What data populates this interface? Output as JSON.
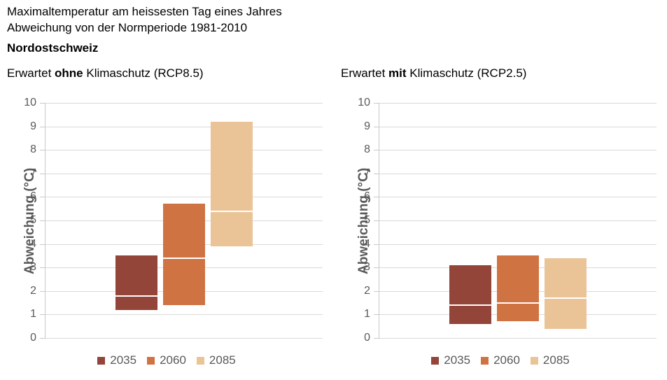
{
  "page": {
    "title_line1": "Maximaltemperatur am heissesten Tag eines Jahres",
    "title_line2": "Abweichung von der Normperiode 1981-2010",
    "region": "Nordostschweiz"
  },
  "colors": {
    "series_2035": "#924538",
    "series_2060": "#d07343",
    "series_2085": "#eac397",
    "median_line": "#ffffff",
    "gridline": "#d9d9d9",
    "axis_line": "#c9c9c9",
    "axis_text": "#595959",
    "title_text": "#000000"
  },
  "chart_data": [
    {
      "type": "bar",
      "subtype": "floating_range_bars",
      "scenario": "RCP8.5",
      "title_parts": {
        "prefix": "Erwartet ",
        "emphasis": "ohne",
        "suffix": " Klimaschutz (RCP8.5)"
      },
      "ylabel": "Abweichung (°C)",
      "ylim": [
        0,
        10
      ],
      "yticks": [
        0,
        1,
        2,
        3,
        4,
        5,
        6,
        7,
        8,
        9,
        10
      ],
      "grid": true,
      "legend_position": "bottom",
      "categories": [
        "2035",
        "2060",
        "2085"
      ],
      "series": [
        {
          "name": "2035",
          "color": "#924538",
          "low": 1.2,
          "median": 1.8,
          "high": 3.5
        },
        {
          "name": "2060",
          "color": "#d07343",
          "low": 1.4,
          "median": 3.4,
          "high": 5.7
        },
        {
          "name": "2085",
          "color": "#eac397",
          "low": 3.9,
          "median": 5.4,
          "high": 9.2
        }
      ]
    },
    {
      "type": "bar",
      "subtype": "floating_range_bars",
      "scenario": "RCP2.5",
      "title_parts": {
        "prefix": "Erwartet ",
        "emphasis": "mit",
        "suffix": " Klimaschutz (RCP2.5)"
      },
      "ylabel": "Abweichung (°C)",
      "ylim": [
        0,
        10
      ],
      "yticks": [
        0,
        1,
        2,
        3,
        4,
        5,
        6,
        7,
        8,
        9,
        10
      ],
      "grid": true,
      "legend_position": "bottom",
      "categories": [
        "2035",
        "2060",
        "2085"
      ],
      "series": [
        {
          "name": "2035",
          "color": "#924538",
          "low": 0.6,
          "median": 1.4,
          "high": 3.1
        },
        {
          "name": "2060",
          "color": "#d07343",
          "low": 0.7,
          "median": 1.5,
          "high": 3.5
        },
        {
          "name": "2085",
          "color": "#eac397",
          "low": 0.4,
          "median": 1.7,
          "high": 3.4
        }
      ]
    }
  ]
}
